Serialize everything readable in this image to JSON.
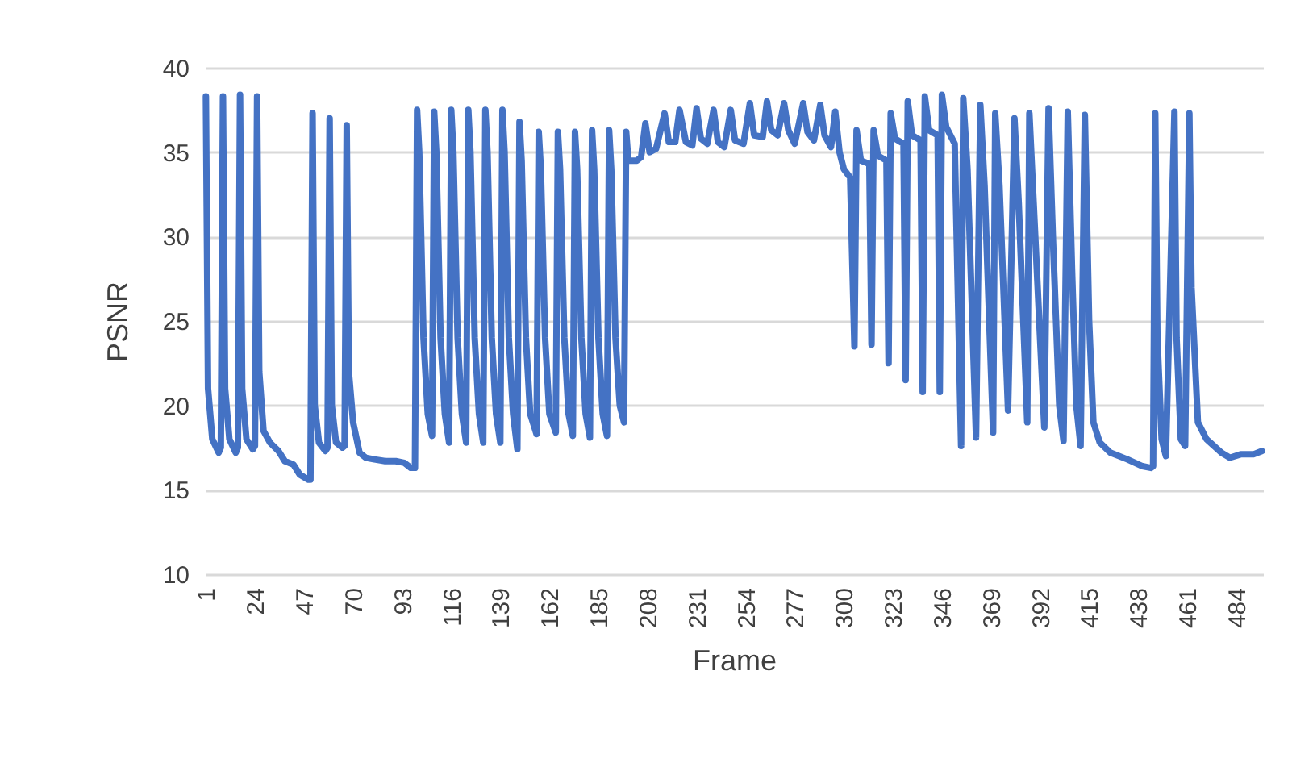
{
  "chart_data": {
    "type": "line",
    "xlabel": "Frame",
    "ylabel": "PSNR",
    "xlim": [
      0.5,
      496.5
    ],
    "xticks": [
      1,
      24,
      47,
      70,
      93,
      116,
      139,
      162,
      185,
      208,
      231,
      254,
      277,
      300,
      323,
      346,
      369,
      392,
      415,
      438,
      461,
      484
    ],
    "ylim": [
      10,
      40
    ],
    "yticks": [
      10,
      15,
      20,
      25,
      30,
      35,
      40
    ],
    "grid": "y",
    "line_style": "solid",
    "series": [
      {
        "color": "#4472c4",
        "x": [
          1,
          2,
          4,
          7,
          8,
          9,
          10,
          12,
          15,
          16,
          17,
          18,
          20,
          23,
          24,
          25,
          26,
          28,
          31,
          35,
          38,
          42,
          45,
          49,
          50,
          51,
          52,
          54,
          57,
          58,
          59,
          60,
          62,
          65,
          66,
          67,
          68,
          70,
          73,
          76,
          80,
          85,
          90,
          94,
          97,
          99,
          100,
          101,
          103,
          105,
          107,
          108,
          109,
          111,
          113,
          115,
          116,
          117,
          119,
          121,
          123,
          124,
          125,
          127,
          129,
          131,
          132,
          133,
          135,
          137,
          139,
          140,
          141,
          143,
          145,
          147,
          148,
          149,
          151,
          153,
          156,
          157,
          158,
          160,
          162,
          165,
          166,
          167,
          169,
          171,
          173,
          174,
          175,
          177,
          179,
          181,
          182,
          183,
          185,
          187,
          189,
          190,
          191,
          193,
          195,
          197,
          198,
          199,
          203,
          205,
          207,
          209,
          212,
          216,
          218,
          221,
          223,
          226,
          229,
          231,
          233,
          236,
          239,
          241,
          244,
          247,
          249,
          253,
          256,
          258,
          262,
          264,
          266,
          269,
          272,
          274,
          277,
          281,
          283,
          286,
          289,
          291,
          294,
          296,
          298,
          300,
          303,
          305,
          306,
          308,
          312,
          313,
          314,
          316,
          320,
          321,
          322,
          324,
          328,
          329,
          330,
          332,
          336,
          337,
          338,
          340,
          344,
          345,
          346,
          348,
          352,
          355,
          356,
          358,
          362,
          364,
          366,
          370,
          371,
          373,
          377,
          380,
          382,
          386,
          387,
          389,
          394,
          396,
          398,
          401,
          403,
          405,
          407,
          409,
          411,
          413,
          415,
          417,
          420,
          425,
          433,
          440,
          444,
          445,
          446,
          447,
          449,
          451,
          455,
          456,
          458,
          460,
          462,
          463,
          466,
          470,
          477,
          481,
          486,
          492,
          496
        ],
        "values": [
          38.3,
          21,
          18,
          17.2,
          17.5,
          38.3,
          21,
          18,
          17.2,
          17.5,
          38.4,
          21,
          18,
          17.4,
          17.6,
          38.3,
          22,
          18.5,
          17.8,
          17.3,
          16.7,
          16.5,
          15.9,
          15.6,
          15.6,
          37.3,
          20,
          17.8,
          17.3,
          17.5,
          37.0,
          20,
          17.8,
          17.5,
          17.6,
          36.6,
          22,
          19,
          17.2,
          16.9,
          16.8,
          16.7,
          16.7,
          16.6,
          16.3,
          16.3,
          37.5,
          35,
          24,
          19.5,
          18.2,
          37.4,
          35,
          24,
          19.5,
          17.8,
          37.5,
          35,
          24,
          19.5,
          17.8,
          37.5,
          35,
          24,
          19.5,
          17.8,
          37.5,
          35,
          24,
          19.5,
          17.8,
          37.5,
          35,
          24,
          19.5,
          17.4,
          36.8,
          34.5,
          24,
          19.5,
          18.3,
          36.2,
          34,
          24,
          19.5,
          18.4,
          36.2,
          34,
          24,
          19.5,
          18.2,
          36.2,
          34,
          24,
          19.5,
          18.1,
          36.3,
          34,
          24,
          19.5,
          18.2,
          36.3,
          34,
          24,
          20,
          19.0,
          36.2,
          34.5,
          34.5,
          34.7,
          36.7,
          35.0,
          35.2,
          37.3,
          35.6,
          35.6,
          37.5,
          35.6,
          35.4,
          37.6,
          35.8,
          35.5,
          37.5,
          35.6,
          35.3,
          37.5,
          35.7,
          35.5,
          37.9,
          36.0,
          35.9,
          38.0,
          36.3,
          36.0,
          37.9,
          36.3,
          35.5,
          37.9,
          36.2,
          35.7,
          37.8,
          36.0,
          35.3,
          37.4,
          35.0,
          34.0,
          33.5,
          23.5,
          36.3,
          34.5,
          34.3,
          23.6,
          36.3,
          34.8,
          34.5,
          22.5,
          37.3,
          35.8,
          35.5,
          21.5,
          38.0,
          36.0,
          35.7,
          20.8,
          38.3,
          36.3,
          36.0,
          20.8,
          38.4,
          36.5,
          35.5,
          17.6,
          38.2,
          34,
          18.1,
          37.8,
          33,
          18.4,
          37.3,
          33,
          19.7,
          37.0,
          32,
          19.0,
          37.3,
          32,
          18.7,
          37.6,
          30,
          20,
          17.9,
          37.4,
          28,
          20,
          17.6,
          37.2,
          25,
          19,
          17.8,
          17.2,
          16.8,
          16.4,
          16.3,
          16.4,
          37.3,
          24,
          18,
          17.0,
          37.4,
          24,
          18,
          17.6,
          37.3,
          27,
          19,
          18.0,
          17.2,
          16.9,
          17.1,
          17.1,
          17.3
        ]
      }
    ]
  }
}
